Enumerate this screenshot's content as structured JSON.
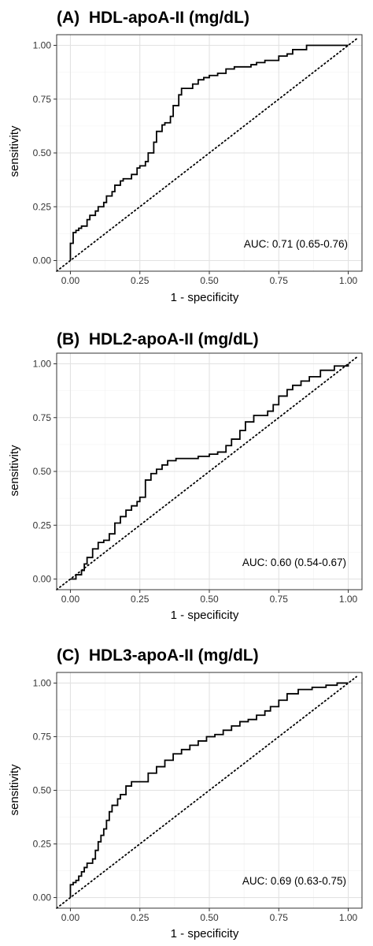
{
  "chart_data": [
    {
      "type": "line",
      "title": "(A)  HDL-apoA-II (mg/dL)",
      "xlabel": "1 - specificity",
      "ylabel": "sensitivity",
      "xlim": [
        0,
        1
      ],
      "ylim": [
        0,
        1
      ],
      "xticks": [
        "0.00",
        "0.25",
        "0.50",
        "0.75",
        "1.00"
      ],
      "yticks": [
        "0.00",
        "0.25",
        "0.50",
        "0.75",
        "1.00"
      ],
      "grid": true,
      "reference_line": "diagonal dotted",
      "annotation": "AUC: 0.71 (0.65-0.76)",
      "series": [
        {
          "x": [
            0.0,
            0.0,
            0.01,
            0.01,
            0.02,
            0.03,
            0.04,
            0.06,
            0.07,
            0.09,
            0.1,
            0.12,
            0.13,
            0.15,
            0.16,
            0.18,
            0.19,
            0.21,
            0.22,
            0.24,
            0.25,
            0.27,
            0.28,
            0.3,
            0.31,
            0.33,
            0.34,
            0.36,
            0.37,
            0.39,
            0.4,
            0.42,
            0.44,
            0.46,
            0.48,
            0.5,
            0.53,
            0.56,
            0.59,
            0.62,
            0.65,
            0.67,
            0.7,
            0.72,
            0.75,
            0.78,
            0.8,
            0.85,
            0.9,
            0.95,
            1.0
          ],
          "y": [
            0.0,
            0.08,
            0.11,
            0.13,
            0.14,
            0.15,
            0.16,
            0.19,
            0.21,
            0.23,
            0.25,
            0.27,
            0.3,
            0.32,
            0.35,
            0.37,
            0.38,
            0.38,
            0.4,
            0.43,
            0.44,
            0.46,
            0.5,
            0.55,
            0.6,
            0.63,
            0.64,
            0.67,
            0.72,
            0.77,
            0.8,
            0.8,
            0.82,
            0.84,
            0.85,
            0.86,
            0.87,
            0.89,
            0.9,
            0.9,
            0.91,
            0.92,
            0.93,
            0.93,
            0.95,
            0.96,
            0.98,
            1.0,
            1.0,
            1.0,
            1.0
          ]
        }
      ]
    },
    {
      "type": "line",
      "title": "(B)  HDL2-apoA-II (mg/dL)",
      "xlabel": "1 - specificity",
      "ylabel": "sensitivity",
      "xlim": [
        0,
        1
      ],
      "ylim": [
        0,
        1
      ],
      "xticks": [
        "0.00",
        "0.25",
        "0.50",
        "0.75",
        "1.00"
      ],
      "yticks": [
        "0.00",
        "0.25",
        "0.50",
        "0.75",
        "1.00"
      ],
      "grid": true,
      "reference_line": "diagonal dotted",
      "annotation": "AUC: 0.60 (0.54-0.67)",
      "series": [
        {
          "x": [
            0.0,
            0.02,
            0.04,
            0.05,
            0.06,
            0.08,
            0.1,
            0.12,
            0.14,
            0.16,
            0.18,
            0.2,
            0.22,
            0.24,
            0.25,
            0.27,
            0.29,
            0.31,
            0.33,
            0.35,
            0.38,
            0.42,
            0.46,
            0.5,
            0.53,
            0.56,
            0.58,
            0.61,
            0.63,
            0.66,
            0.69,
            0.71,
            0.73,
            0.75,
            0.78,
            0.8,
            0.83,
            0.86,
            0.9,
            0.95,
            1.0
          ],
          "y": [
            0.0,
            0.02,
            0.04,
            0.07,
            0.1,
            0.14,
            0.17,
            0.18,
            0.21,
            0.26,
            0.29,
            0.32,
            0.34,
            0.36,
            0.38,
            0.46,
            0.49,
            0.51,
            0.53,
            0.55,
            0.56,
            0.56,
            0.57,
            0.58,
            0.59,
            0.62,
            0.65,
            0.69,
            0.73,
            0.76,
            0.76,
            0.78,
            0.81,
            0.85,
            0.88,
            0.9,
            0.92,
            0.94,
            0.97,
            0.99,
            1.0
          ]
        }
      ]
    },
    {
      "type": "line",
      "title": "(C)  HDL3-apoA-II (mg/dL)",
      "xlabel": "1 - specificity",
      "ylabel": "sensitivity",
      "xlim": [
        0,
        1
      ],
      "ylim": [
        0,
        1
      ],
      "xticks": [
        "0.00",
        "0.25",
        "0.50",
        "0.75",
        "1.00"
      ],
      "yticks": [
        "0.00",
        "0.25",
        "0.50",
        "0.75",
        "1.00"
      ],
      "grid": true,
      "reference_line": "diagonal dotted",
      "annotation": "AUC: 0.69 (0.63-0.75)",
      "series": [
        {
          "x": [
            0.0,
            0.0,
            0.01,
            0.02,
            0.03,
            0.04,
            0.05,
            0.06,
            0.08,
            0.09,
            0.1,
            0.11,
            0.12,
            0.13,
            0.14,
            0.15,
            0.17,
            0.18,
            0.2,
            0.22,
            0.25,
            0.28,
            0.31,
            0.34,
            0.37,
            0.4,
            0.43,
            0.46,
            0.49,
            0.52,
            0.55,
            0.58,
            0.61,
            0.64,
            0.67,
            0.7,
            0.72,
            0.75,
            0.78,
            0.82,
            0.87,
            0.92,
            0.96,
            1.0
          ],
          "y": [
            0.0,
            0.06,
            0.07,
            0.08,
            0.1,
            0.12,
            0.14,
            0.16,
            0.18,
            0.22,
            0.26,
            0.29,
            0.32,
            0.36,
            0.4,
            0.43,
            0.46,
            0.48,
            0.52,
            0.54,
            0.54,
            0.58,
            0.61,
            0.64,
            0.67,
            0.69,
            0.71,
            0.73,
            0.75,
            0.76,
            0.78,
            0.8,
            0.82,
            0.83,
            0.85,
            0.87,
            0.89,
            0.92,
            0.95,
            0.97,
            0.98,
            0.99,
            1.0,
            1.0
          ]
        }
      ]
    }
  ],
  "colors": {
    "curve": "#000000",
    "reference": "#000000",
    "grid": "#e2e2e2",
    "panel_border": "#333333",
    "background": "#ffffff"
  }
}
